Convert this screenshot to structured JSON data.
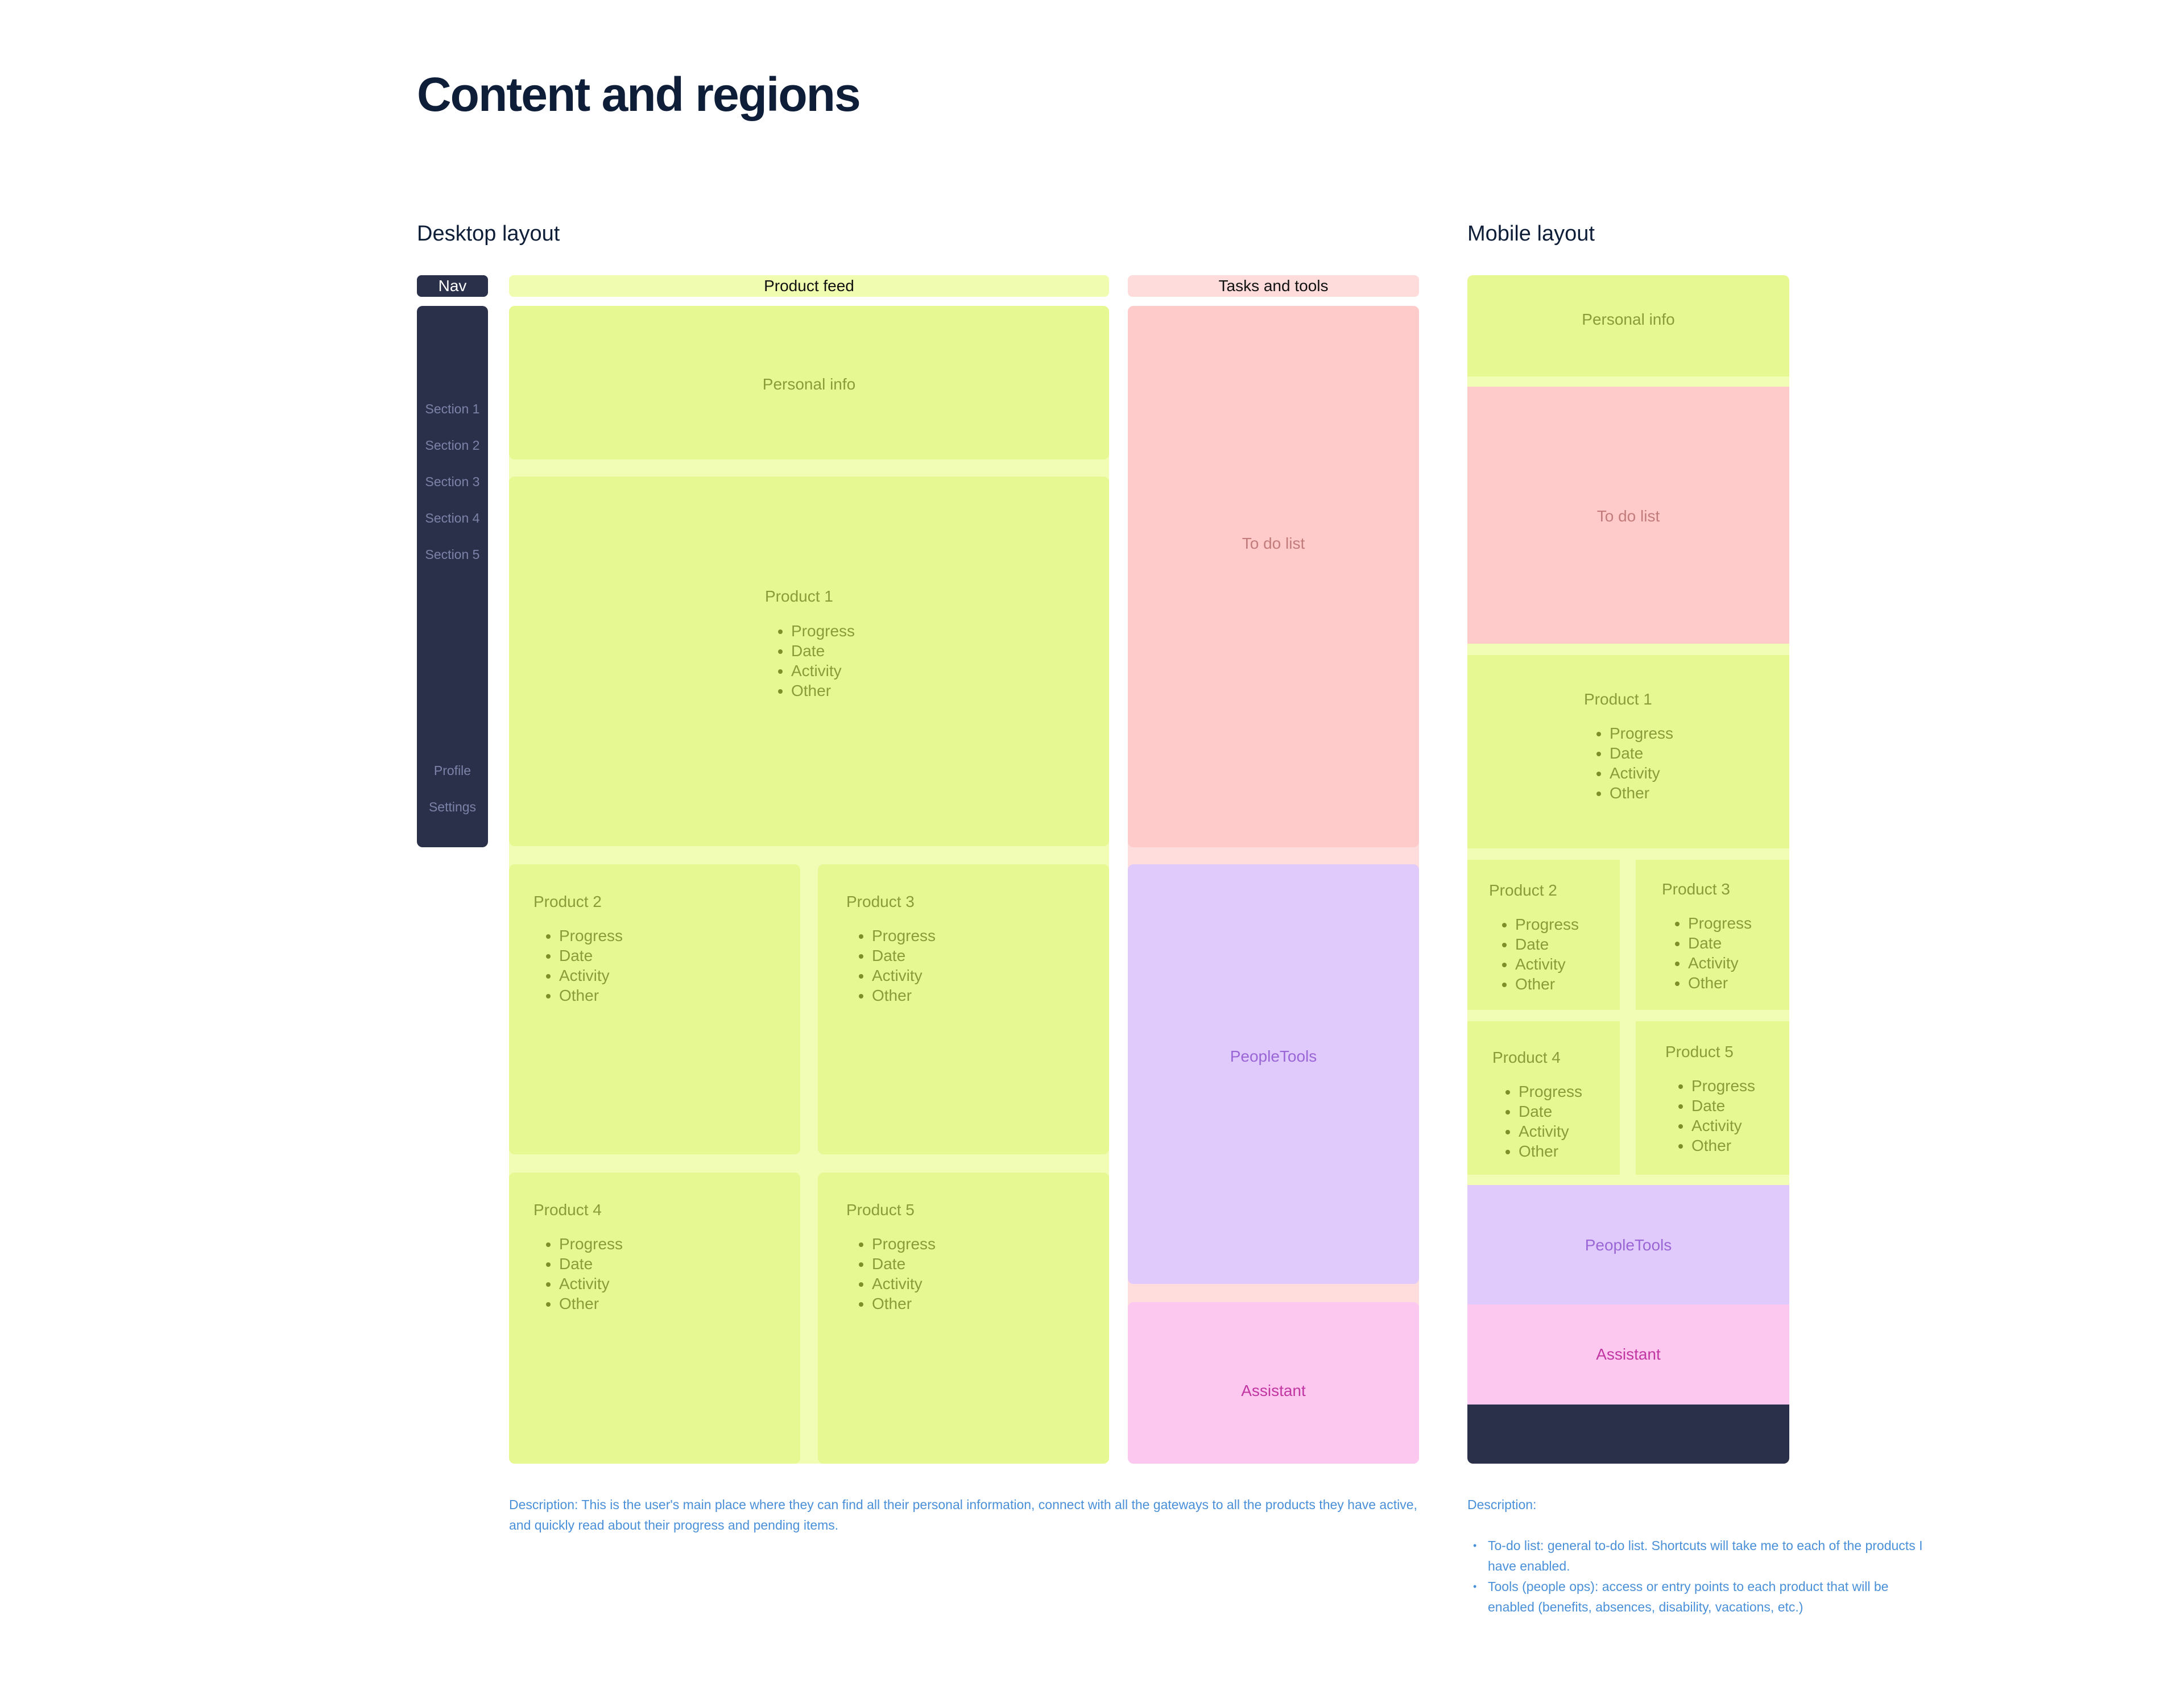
{
  "title": "Content and regions",
  "desktop": {
    "heading": "Desktop layout",
    "headers": {
      "nav": "Nav",
      "product_feed": "Product feed",
      "tasks_tools": "Tasks and tools"
    },
    "nav": {
      "sections": [
        "Section 1",
        "Section 2",
        "Section 3",
        "Section 4",
        "Section 5"
      ],
      "profile": "Profile",
      "settings": "Settings"
    },
    "personal_info": "Personal info",
    "products": [
      {
        "name": "Product 1",
        "items": [
          "Progress",
          "Date",
          "Activity",
          "Other"
        ]
      },
      {
        "name": "Product 2",
        "items": [
          "Progress",
          "Date",
          "Activity",
          "Other"
        ]
      },
      {
        "name": "Product 3",
        "items": [
          "Progress",
          "Date",
          "Activity",
          "Other"
        ]
      },
      {
        "name": "Product 4",
        "items": [
          "Progress",
          "Date",
          "Activity",
          "Other"
        ]
      },
      {
        "name": "Product 5",
        "items": [
          "Progress",
          "Date",
          "Activity",
          "Other"
        ]
      }
    ],
    "todo": "To do list",
    "people_tools": "PeopleTools",
    "assistant": "Assistant",
    "description": "Description: This is the user's main place where they can find all their personal information, connect with all the gateways to all the products they have active, and quickly read about their progress and pending items."
  },
  "mobile": {
    "heading": "Mobile layout",
    "personal_info": "Personal info",
    "todo": "To do list",
    "products": [
      {
        "name": "Product 1",
        "items": [
          "Progress",
          "Date",
          "Activity",
          "Other"
        ]
      },
      {
        "name": "Product 2",
        "items": [
          "Progress",
          "Date",
          "Activity",
          "Other"
        ]
      },
      {
        "name": "Product 3",
        "items": [
          "Progress",
          "Date",
          "Activity",
          "Other"
        ]
      },
      {
        "name": "Product 4",
        "items": [
          "Progress",
          "Date",
          "Activity",
          "Other"
        ]
      },
      {
        "name": "Product 5",
        "items": [
          "Progress",
          "Date",
          "Activity",
          "Other"
        ]
      }
    ],
    "people_tools": "PeopleTools",
    "assistant": "Assistant",
    "description_label": "Description:",
    "description_items": [
      "To-do list: general to-do list. Shortcuts will take me to each of the products I have enabled.",
      "Tools (people ops): access or entry points to each product that will be enabled (benefits, absences, disability, vacations, etc.)"
    ]
  },
  "colors": {
    "lime": "#e6f892",
    "lime_light": "#f1fcb5",
    "pink": "#ffcaca",
    "pink_light": "#ffdddd",
    "violet": "#e0cafc",
    "magenta": "#fdc8ef",
    "navy": "#2a3049",
    "title": "#0e1e38",
    "description": "#4a90d9"
  }
}
